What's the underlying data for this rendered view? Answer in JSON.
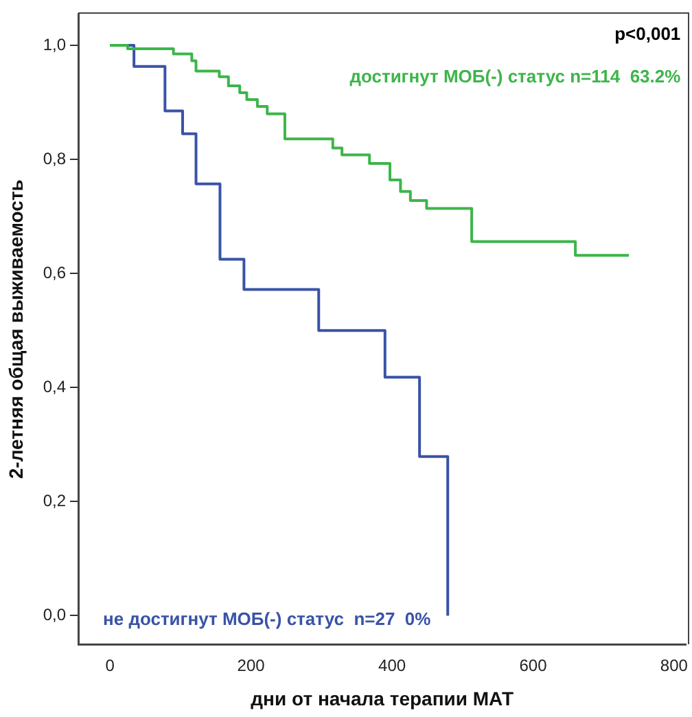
{
  "chart_data": {
    "type": "step",
    "xlabel": "дни от начала терапии МАТ",
    "ylabel": "2-летняя общая выживаемость",
    "annotations": [
      "p<0,001"
    ],
    "xlim": [
      -45,
      817
    ],
    "xticks": [
      0,
      200,
      400,
      600,
      800
    ],
    "ylim": [
      -0.05,
      1.055
    ],
    "yticks": [
      {
        "value": 0,
        "label": "0,0"
      },
      {
        "value": 0.2,
        "label": "0,2"
      },
      {
        "value": 0.4,
        "label": "0,4"
      },
      {
        "value": 0.6,
        "label": "0,6"
      },
      {
        "value": 0.8,
        "label": "0,8"
      },
      {
        "value": 1,
        "label": "1,0"
      }
    ],
    "grid": false,
    "legend": false,
    "series": [
      {
        "name": "достигнут МОБ(-) статус n=114  63.2%",
        "color": "#3db54a",
        "x": [
          0,
          25,
          90,
          116,
          122,
          155,
          168,
          184,
          194,
          209,
          223,
          248,
          316,
          329,
          368,
          397,
          412,
          426,
          449,
          513,
          660,
          736
        ],
        "values": [
          1,
          0.994,
          0.985,
          0.973,
          0.955,
          0.945,
          0.929,
          0.917,
          0.905,
          0.893,
          0.88,
          0.836,
          0.82,
          0.808,
          0.793,
          0.764,
          0.744,
          0.728,
          0.714,
          0.656,
          0.632,
          0.632
        ]
      },
      {
        "name": "не достигнут МОБ(-) статус  n=27  0%",
        "color": "#3953a6",
        "x": [
          0,
          34,
          78,
          103,
          122,
          156,
          190,
          296,
          390,
          439,
          479
        ],
        "values": [
          1,
          0.963,
          0.885,
          0.845,
          0.757,
          0.625,
          0.572,
          0.5,
          0.418,
          0.279,
          0
        ]
      }
    ]
  }
}
